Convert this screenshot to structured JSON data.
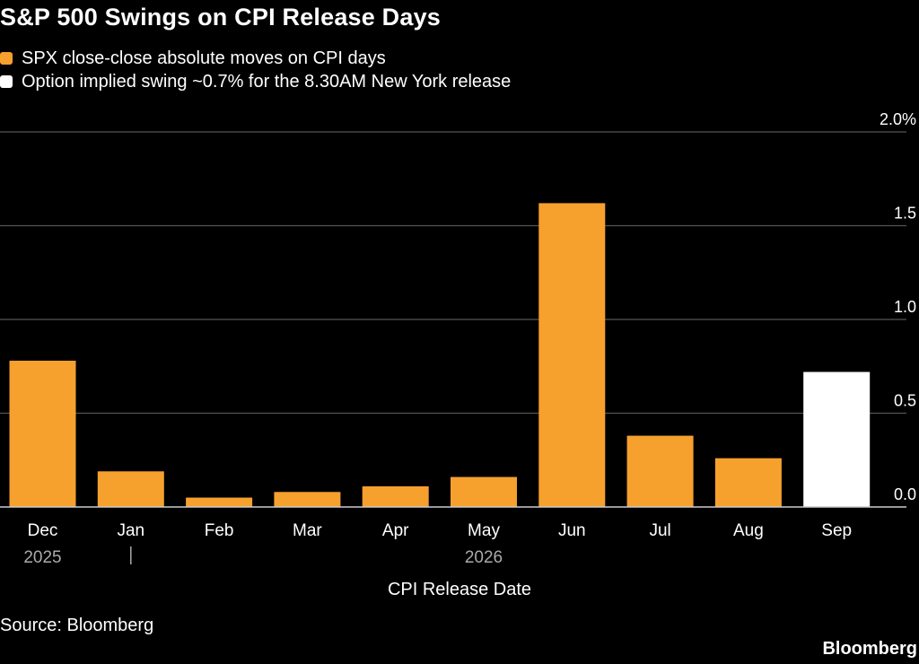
{
  "title": "S&P 500 Swings on CPI Release Days",
  "legend": [
    {
      "label": "SPX close-close absolute moves on CPI days",
      "color": "#f6a02d"
    },
    {
      "label": "Option implied swing ~0.7% for the 8.30AM New York release",
      "color": "#ffffff"
    }
  ],
  "source": "Source: Bloomberg",
  "brand": "Bloomberg",
  "chart_data": {
    "type": "bar",
    "categories": [
      "Dec",
      "Jan",
      "Feb",
      "Mar",
      "Apr",
      "May",
      "Jun",
      "Jul",
      "Aug",
      "Sep"
    ],
    "values": [
      0.78,
      0.19,
      0.05,
      0.08,
      0.11,
      0.16,
      1.62,
      0.38,
      0.26,
      0.72
    ],
    "bar_colors": [
      "#f6a02d",
      "#f6a02d",
      "#f6a02d",
      "#f6a02d",
      "#f6a02d",
      "#f6a02d",
      "#f6a02d",
      "#f6a02d",
      "#f6a02d",
      "#ffffff"
    ],
    "year_labels": [
      {
        "category": "Dec",
        "label": "2025"
      },
      {
        "category": "May",
        "label": "2026"
      }
    ],
    "year_divider_category": "Jan",
    "xlabel": "CPI Release Date",
    "ylabel": "",
    "ylim": [
      0,
      2.0
    ],
    "yticks": [
      0.0,
      0.5,
      1.0,
      1.5,
      2.0
    ],
    "ytick_labels": [
      "0.0",
      "0.5",
      "1.0",
      "1.5",
      "2.0%"
    ],
    "grid": true,
    "y_axis_side": "right",
    "grid_color": "#555555",
    "axis_color": "#cccccc",
    "year_label_color": "#aaaaaa"
  }
}
